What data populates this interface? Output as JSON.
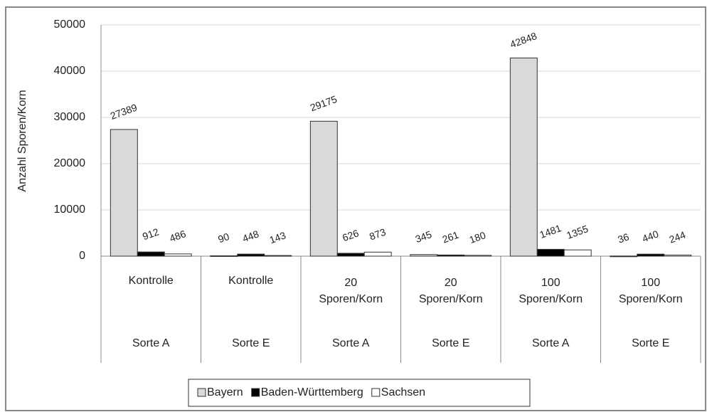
{
  "chart_data": {
    "type": "bar",
    "y_label": "Anzahl Sporen/Korn",
    "categories": [
      "Kontrolle",
      "Kontrolle",
      "20 Sporen/Korn",
      "20 Sporen/Korn",
      "100 Sporen/Korn",
      "100 Sporen/Korn"
    ],
    "groups": [
      "Sorte A",
      "Sorte E",
      "Sorte A",
      "Sorte E",
      "Sorte A",
      "Sorte E"
    ],
    "series": [
      {
        "name": "Bayern",
        "color": "#d9d9d9",
        "values": [
          27389,
          90,
          29175,
          345,
          42848,
          36
        ]
      },
      {
        "name": "Baden-Württemberg",
        "color": "#000000",
        "values": [
          912,
          448,
          626,
          261,
          1481,
          440
        ]
      },
      {
        "name": "Sachsen",
        "color": "#ffffff",
        "values": [
          486,
          143,
          873,
          180,
          1355,
          244
        ]
      }
    ],
    "ylim": [
      0,
      50000
    ],
    "yticks": [
      0,
      10000,
      20000,
      30000,
      40000,
      50000
    ],
    "grid": true,
    "legend": "bottom"
  }
}
